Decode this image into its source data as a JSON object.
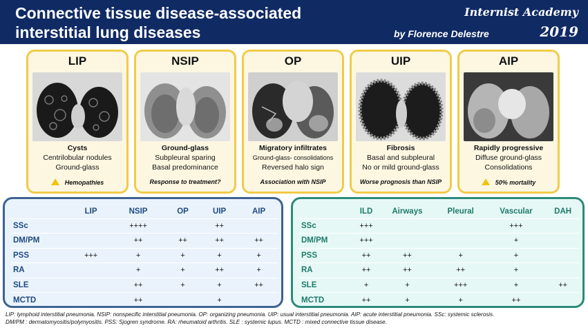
{
  "header": {
    "title_line1": "Connective tissue disease-associated",
    "title_line2": "interstitial lung diseases",
    "brand": "Internist Academy",
    "author": "by Florence Delestre",
    "year": "2019",
    "background_color": "#102a64"
  },
  "cards": [
    {
      "name": "LIP",
      "desc_bold": "Cysts",
      "desc_2": "Centrilobular nodules",
      "desc_3": "Ground-glass",
      "note": "Hemopathies",
      "note_warning": true
    },
    {
      "name": "NSIP",
      "desc_bold": "Ground-glass",
      "desc_2": "Subpleural sparing",
      "desc_3": "Basal predominance",
      "note": "Response to treatment?",
      "note_warning": false
    },
    {
      "name": "OP",
      "desc_bold": "Migratory infiltrates",
      "desc_2": "Ground-glass- consolidations",
      "desc_3": "Reversed halo sign",
      "note": "Association with NSIP",
      "note_warning": false
    },
    {
      "name": "UIP",
      "desc_bold": "Fibrosis",
      "desc_2": "Basal and subpleural",
      "desc_3": "No or mild ground-glass",
      "note": "Worse prognosis than NSIP",
      "note_warning": false
    },
    {
      "name": "AIP",
      "desc_bold": "Rapidly progressive",
      "desc_2": "Diffuse ground-glass",
      "desc_3": "Consolidations",
      "note": "50% mortality",
      "note_warning": true
    }
  ],
  "card_style": {
    "border_color": "#f1cb47",
    "background_color": "#fdf7e2"
  },
  "pattern_table": {
    "columns": [
      "LIP",
      "NSIP",
      "OP",
      "UIP",
      "AIP"
    ],
    "rows": [
      {
        "label": "SSc",
        "cells": [
          "",
          "++++",
          "",
          "++",
          ""
        ]
      },
      {
        "label": "DM/PM",
        "cells": [
          "",
          "++",
          "++",
          "++",
          "++"
        ]
      },
      {
        "label": "PSS",
        "cells": [
          "+++",
          "+",
          "+",
          "+",
          "+"
        ]
      },
      {
        "label": "RA",
        "cells": [
          "",
          "+",
          "+",
          "++",
          "+"
        ]
      },
      {
        "label": "SLE",
        "cells": [
          "",
          "++",
          "+",
          "+",
          "++"
        ]
      },
      {
        "label": "MCTD",
        "cells": [
          "",
          "++",
          "",
          "+",
          ""
        ]
      }
    ],
    "border_color": "#3c6291"
  },
  "involvement_table": {
    "columns": [
      "ILD",
      "Airways",
      "Pleural",
      "Vascular",
      "DAH"
    ],
    "rows": [
      {
        "label": "SSc",
        "cells": [
          "+++",
          "",
          "",
          "+++",
          ""
        ]
      },
      {
        "label": "DM/PM",
        "cells": [
          "+++",
          "",
          "",
          "+",
          ""
        ]
      },
      {
        "label": "PSS",
        "cells": [
          "++",
          "++",
          "+",
          "+",
          ""
        ]
      },
      {
        "label": "RA",
        "cells": [
          "++",
          "++",
          "++",
          "+",
          ""
        ]
      },
      {
        "label": "SLE",
        "cells": [
          "+",
          "+",
          "+++",
          "+",
          "++"
        ]
      },
      {
        "label": "MCTD",
        "cells": [
          "++",
          "+",
          "+",
          "++",
          ""
        ]
      }
    ],
    "border_color": "#2c8a7a"
  },
  "footnote": {
    "line1": "LIP: lymphoid interstitial pneumonia. NSIP: nonspecific interstitial pneumonia. OP: organizing pneumonia. UIP: usual interstitial pneumonia. AIP: acute interstitial pneumonia. SSc: systemic sclerosis.",
    "line2": "DM/PM : dermatomyositis/polymyositis. PSS: Sjogren syndrome. RA: rheumatoid arthritis. SLE : systemic lupus. MCTD : mixed connective tissue disease."
  }
}
